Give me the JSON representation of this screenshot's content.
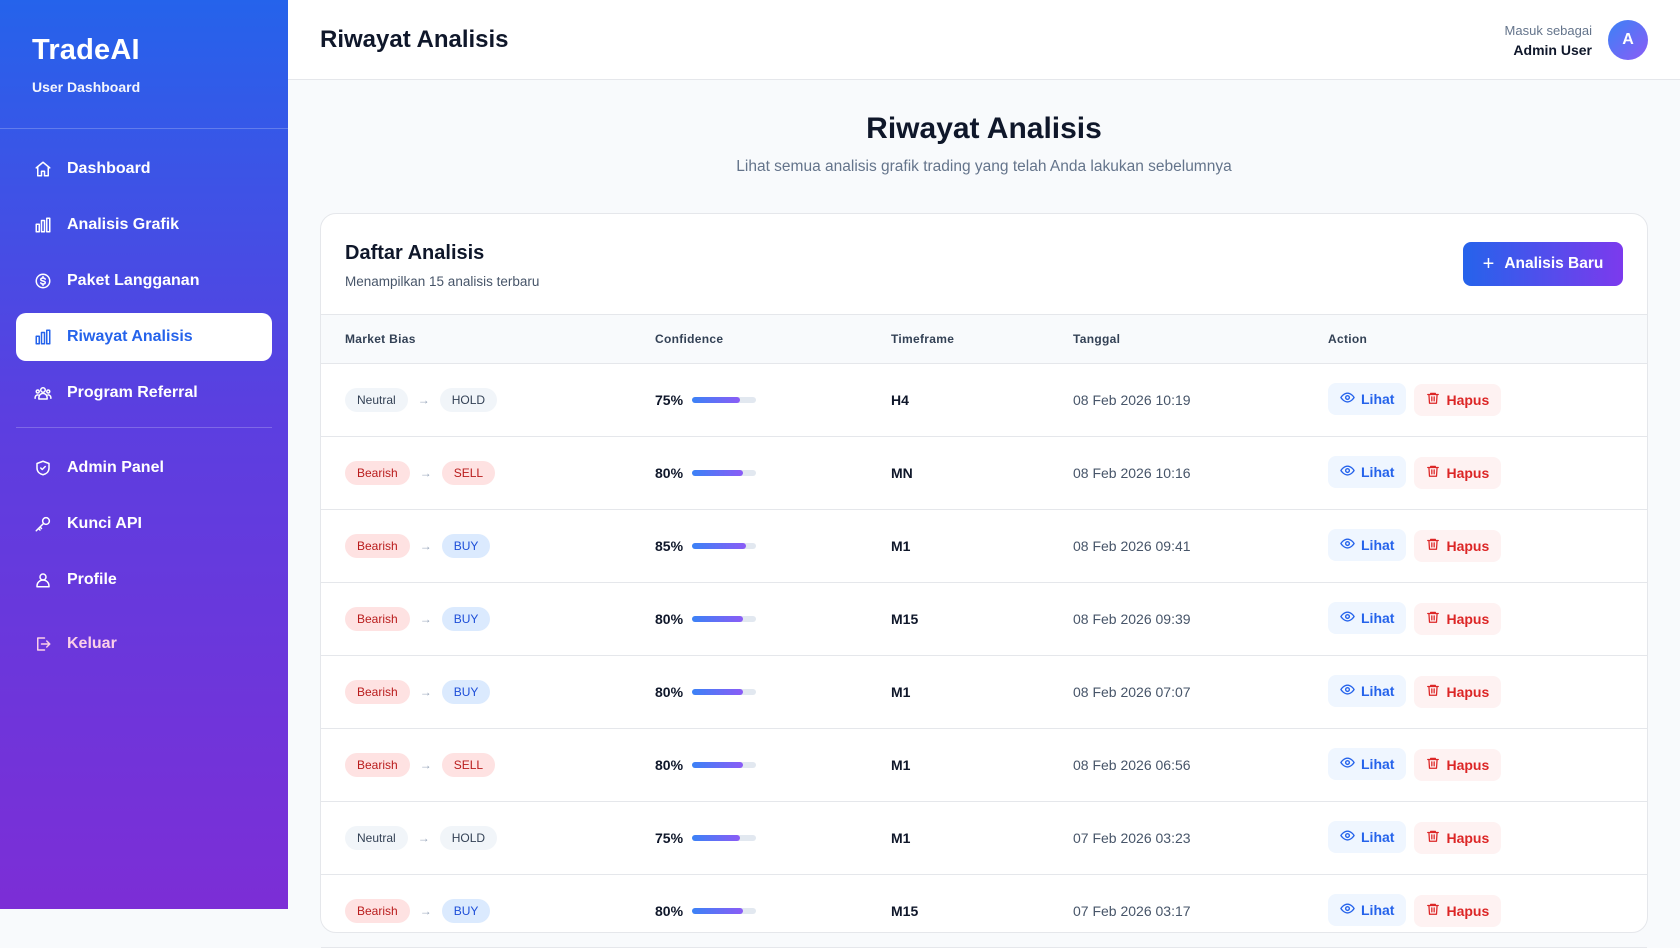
{
  "brand": {
    "title": "TradeAI",
    "subtitle": "User Dashboard"
  },
  "nav": {
    "items": [
      {
        "label": "Dashboard",
        "icon": "home-icon",
        "active": false
      },
      {
        "label": "Analisis Grafik",
        "icon": "bar-chart-icon",
        "active": false
      },
      {
        "label": "Paket Langganan",
        "icon": "dollar-circle-icon",
        "active": false
      },
      {
        "label": "Riwayat Analisis",
        "icon": "bar-chart-icon",
        "active": true
      },
      {
        "label": "Program Referral",
        "icon": "users-icon",
        "active": false
      }
    ],
    "admin_items": [
      {
        "label": "Admin Panel",
        "icon": "shield-icon"
      },
      {
        "label": "Kunci API",
        "icon": "key-icon"
      },
      {
        "label": "Profile",
        "icon": "user-icon"
      }
    ],
    "logout_label": "Keluar"
  },
  "header": {
    "title": "Riwayat Analisis",
    "user_caption": "Masuk sebagai",
    "user_name": "Admin User",
    "avatar_initial": "A"
  },
  "page": {
    "title": "Riwayat Analisis",
    "subtitle": "Lihat semua analisis grafik trading yang telah Anda lakukan sebelumnya"
  },
  "card": {
    "title": "Daftar Analisis",
    "subtitle": "Menampilkan 15 analisis terbaru",
    "new_button": "Analisis Baru"
  },
  "table": {
    "columns": [
      "Market Bias",
      "Confidence",
      "Timeframe",
      "Tanggal",
      "Action"
    ],
    "view_label": "Lihat",
    "delete_label": "Hapus",
    "rows": [
      {
        "bias": "Neutral",
        "signal": "HOLD",
        "confidence": "75%",
        "confidence_value": 75,
        "timeframe": "H4",
        "date": "08 Feb 2026 10:19"
      },
      {
        "bias": "Bearish",
        "signal": "SELL",
        "confidence": "80%",
        "confidence_value": 80,
        "timeframe": "MN",
        "date": "08 Feb 2026 10:16"
      },
      {
        "bias": "Bearish",
        "signal": "BUY",
        "confidence": "85%",
        "confidence_value": 85,
        "timeframe": "M1",
        "date": "08 Feb 2026 09:41"
      },
      {
        "bias": "Bearish",
        "signal": "BUY",
        "confidence": "80%",
        "confidence_value": 80,
        "timeframe": "M15",
        "date": "08 Feb 2026 09:39"
      },
      {
        "bias": "Bearish",
        "signal": "BUY",
        "confidence": "80%",
        "confidence_value": 80,
        "timeframe": "M1",
        "date": "08 Feb 2026 07:07"
      },
      {
        "bias": "Bearish",
        "signal": "SELL",
        "confidence": "80%",
        "confidence_value": 80,
        "timeframe": "M1",
        "date": "08 Feb 2026 06:56"
      },
      {
        "bias": "Neutral",
        "signal": "HOLD",
        "confidence": "75%",
        "confidence_value": 75,
        "timeframe": "M1",
        "date": "07 Feb 2026 03:23"
      },
      {
        "bias": "Bearish",
        "signal": "BUY",
        "confidence": "80%",
        "confidence_value": 80,
        "timeframe": "M15",
        "date": "07 Feb 2026 03:17"
      }
    ]
  },
  "colors": {
    "primary": "#2563eb",
    "accent": "#7c3aed",
    "bearish": "#b91c1c",
    "buy": "#1d4ed8",
    "logout": "#fbcfe8"
  }
}
